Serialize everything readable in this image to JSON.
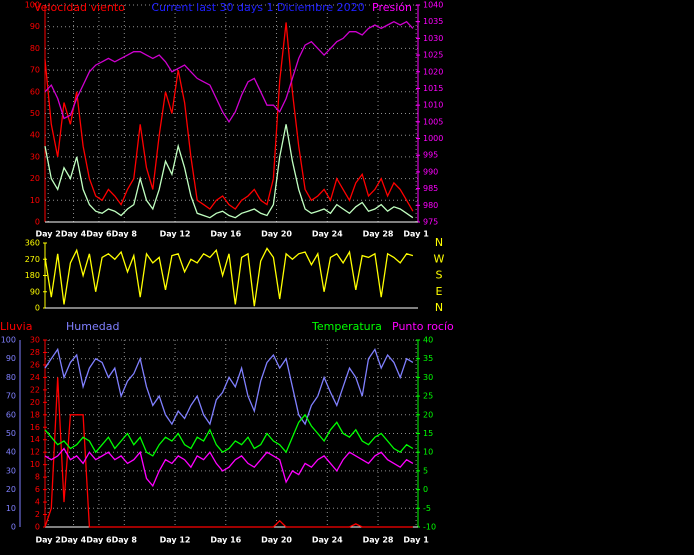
{
  "chart_data": [
    {
      "type": "line",
      "title": "Current last 30 days 1 Diciembre 2020",
      "ylabel": "Velocidad viento",
      "y2label": "Presión",
      "x": [
        0,
        0.5,
        1,
        1.5,
        2,
        2.5,
        3,
        3.5,
        4,
        4.5,
        5,
        5.5,
        6,
        6.5,
        7,
        7.5,
        8,
        8.5,
        9,
        9.5,
        10,
        10.5,
        11,
        11.5,
        12,
        12.5,
        13,
        13.5,
        14,
        14.5,
        15,
        15.5,
        16,
        16.5,
        17,
        17.5,
        18,
        18.5,
        19,
        19.5,
        20,
        20.5,
        21,
        21.5,
        22,
        22.5,
        23,
        23.5,
        24,
        24.5,
        25,
        25.5,
        26,
        26.5,
        27,
        27.5,
        28,
        28.5,
        29
      ],
      "xlim": [
        0,
        29.4
      ],
      "xticks": [
        {
          "value": 0.25,
          "label": "Day 2"
        },
        {
          "value": 2.25,
          "label": "Day 4"
        },
        {
          "value": 4.25,
          "label": "Day 6"
        },
        {
          "value": 6.25,
          "label": "Day 8"
        },
        {
          "value": 10.25,
          "label": "Day 12"
        },
        {
          "value": 14.25,
          "label": "Day 16"
        },
        {
          "value": 18.25,
          "label": "Day 20"
        },
        {
          "value": 22.25,
          "label": "Day 24"
        },
        {
          "value": 26.25,
          "label": "Day 28"
        },
        {
          "value": 29.25,
          "label": "Day 1"
        }
      ],
      "ylim": [
        0,
        100
      ],
      "yticks": [
        0,
        10,
        20,
        30,
        40,
        50,
        60,
        70,
        80,
        90,
        100
      ],
      "ycolor": "#ff0000",
      "y2lim": [
        975,
        1040
      ],
      "y2ticks": [
        975,
        980,
        985,
        990,
        995,
        1000,
        1005,
        1010,
        1015,
        1020,
        1025,
        1030,
        1035,
        1040
      ],
      "y2color": "#ff00ff",
      "grid": true,
      "series": [
        {
          "color": "#ff0000",
          "values": [
            75,
            45,
            30,
            55,
            45,
            60,
            35,
            20,
            12,
            10,
            15,
            12,
            8,
            15,
            20,
            45,
            25,
            15,
            40,
            60,
            50,
            70,
            55,
            30,
            10,
            8,
            6,
            10,
            12,
            8,
            6,
            10,
            12,
            15,
            10,
            8,
            20,
            65,
            92,
            60,
            35,
            15,
            10,
            12,
            15,
            10,
            20,
            15,
            10,
            18,
            22,
            12,
            15,
            20,
            12,
            18,
            15,
            10,
            5
          ]
        },
        {
          "color": "#c0ffc0",
          "values": [
            35,
            20,
            15,
            25,
            20,
            30,
            15,
            8,
            5,
            4,
            6,
            5,
            3,
            6,
            8,
            20,
            10,
            6,
            15,
            28,
            22,
            35,
            25,
            12,
            4,
            3,
            2,
            4,
            5,
            3,
            2,
            4,
            5,
            6,
            4,
            3,
            8,
            30,
            45,
            28,
            15,
            6,
            4,
            5,
            6,
            4,
            8,
            6,
            4,
            7,
            9,
            5,
            6,
            8,
            5,
            7,
            6,
            4,
            2
          ]
        },
        {
          "color": "#d000d0",
          "axis": "y2",
          "values": [
            1014,
            1016,
            1012,
            1006,
            1007,
            1012,
            1016,
            1020,
            1022,
            1023,
            1024,
            1023,
            1024,
            1025,
            1026,
            1026,
            1025,
            1024,
            1025,
            1023,
            1020,
            1021,
            1022,
            1020,
            1018,
            1017,
            1016,
            1012,
            1008,
            1005,
            1008,
            1013,
            1017,
            1018,
            1014,
            1010,
            1010,
            1008,
            1012,
            1018,
            1024,
            1028,
            1029,
            1027,
            1025,
            1027,
            1029,
            1030,
            1032,
            1032,
            1031,
            1033,
            1034,
            1033,
            1034,
            1035,
            1034,
            1035,
            1033
          ]
        }
      ]
    },
    {
      "type": "line",
      "x": [
        0,
        0.5,
        1,
        1.5,
        2,
        2.5,
        3,
        3.5,
        4,
        4.5,
        5,
        5.5,
        6,
        6.5,
        7,
        7.5,
        8,
        8.5,
        9,
        9.5,
        10,
        10.5,
        11,
        11.5,
        12,
        12.5,
        13,
        13.5,
        14,
        14.5,
        15,
        15.5,
        16,
        16.5,
        17,
        17.5,
        18,
        18.5,
        19,
        19.5,
        20,
        20.5,
        21,
        21.5,
        22,
        22.5,
        23,
        23.5,
        24,
        24.5,
        25,
        25.5,
        26,
        26.5,
        27,
        27.5,
        28,
        28.5,
        29
      ],
      "xlim": [
        0,
        29.4
      ],
      "ylim": [
        0,
        360
      ],
      "yticks": [
        0,
        90,
        180,
        270,
        360
      ],
      "ycolor": "#ffff00",
      "y2lim": [
        0,
        360
      ],
      "y2ticks": [
        {
          "value": 360,
          "label": "N"
        },
        {
          "value": 270,
          "label": "W"
        },
        {
          "value": 180,
          "label": "S"
        },
        {
          "value": 90,
          "label": "E"
        },
        {
          "value": 0,
          "label": "N"
        }
      ],
      "y2color": "#ffff00",
      "series": [
        {
          "color": "#ffff00",
          "values": [
            280,
            60,
            300,
            20,
            250,
            320,
            180,
            300,
            90,
            280,
            300,
            270,
            310,
            200,
            290,
            60,
            300,
            250,
            280,
            100,
            290,
            300,
            200,
            270,
            250,
            300,
            280,
            320,
            180,
            300,
            20,
            280,
            300,
            10,
            260,
            330,
            280,
            50,
            300,
            270,
            300,
            310,
            240,
            300,
            90,
            280,
            300,
            250,
            310,
            100,
            290,
            280,
            300,
            60,
            300,
            280,
            250,
            300,
            290
          ]
        }
      ]
    },
    {
      "type": "line",
      "x": [
        0,
        0.5,
        1,
        1.5,
        2,
        2.5,
        3,
        3.5,
        4,
        4.5,
        5,
        5.5,
        6,
        6.5,
        7,
        7.5,
        8,
        8.5,
        9,
        9.5,
        10,
        10.5,
        11,
        11.5,
        12,
        12.5,
        13,
        13.5,
        14,
        14.5,
        15,
        15.5,
        16,
        16.5,
        17,
        17.5,
        18,
        18.5,
        19,
        19.5,
        20,
        20.5,
        21,
        21.5,
        22,
        22.5,
        23,
        23.5,
        24,
        24.5,
        25,
        25.5,
        26,
        26.5,
        27,
        27.5,
        28,
        28.5,
        29
      ],
      "xlim": [
        0,
        29.4
      ],
      "xticks": [
        {
          "value": 0.25,
          "label": "Day 2"
        },
        {
          "value": 2.25,
          "label": "Day 4"
        },
        {
          "value": 4.25,
          "label": "Day 6"
        },
        {
          "value": 6.25,
          "label": "Day 8"
        },
        {
          "value": 10.25,
          "label": "Day 12"
        },
        {
          "value": 14.25,
          "label": "Day 16"
        },
        {
          "value": 18.25,
          "label": "Day 20"
        },
        {
          "value": 22.25,
          "label": "Day 24"
        },
        {
          "value": 26.25,
          "label": "Day 28"
        },
        {
          "value": 29.25,
          "label": "Day 1"
        }
      ],
      "ylim": [
        0,
        100
      ],
      "yticks": [
        0,
        10,
        20,
        30,
        40,
        50,
        60,
        70,
        80,
        90,
        100
      ],
      "ycolor": "#8080ff",
      "y3lim": [
        0,
        30
      ],
      "y3ticks": [
        0,
        2,
        4,
        6,
        8,
        10,
        12,
        14,
        16,
        18,
        20,
        22,
        24,
        26,
        28,
        30
      ],
      "y3color": "#ff0000",
      "y2lim": [
        -10,
        40
      ],
      "y2ticks": [
        -10,
        -5,
        0,
        5,
        10,
        15,
        20,
        25,
        30,
        35,
        40
      ],
      "y2color": "#00ff00",
      "grid": true,
      "series": [
        {
          "name": "Lluvia",
          "color": "#ff0000",
          "axis": "y3",
          "values": [
            0,
            3,
            24,
            4,
            18,
            18,
            18,
            0,
            0,
            0,
            0,
            0,
            0,
            0,
            0,
            0,
            0,
            0,
            0,
            0,
            0,
            0,
            0,
            0,
            0,
            0,
            0,
            0,
            0,
            0,
            0,
            0,
            0,
            0,
            0,
            0,
            0,
            1,
            0,
            0,
            0,
            0,
            0,
            0,
            0,
            0,
            0,
            0,
            0,
            0.5,
            0,
            0,
            0,
            0,
            0,
            0,
            0,
            0,
            0
          ]
        },
        {
          "name": "Humedad",
          "color": "#8080ff",
          "values": [
            85,
            90,
            95,
            80,
            88,
            92,
            75,
            85,
            90,
            88,
            80,
            85,
            70,
            78,
            82,
            90,
            75,
            65,
            70,
            60,
            55,
            62,
            58,
            65,
            70,
            60,
            55,
            68,
            72,
            80,
            75,
            85,
            70,
            62,
            78,
            88,
            92,
            85,
            90,
            75,
            60,
            55,
            65,
            70,
            80,
            72,
            65,
            75,
            85,
            80,
            70,
            90,
            95,
            85,
            92,
            88,
            80,
            90,
            88
          ]
        },
        {
          "name": "Temperatura",
          "color": "#00ff00",
          "axis": "y2",
          "values": [
            16,
            14,
            12,
            13,
            11,
            12,
            14,
            13,
            10,
            12,
            14,
            11,
            13,
            15,
            12,
            14,
            10,
            9,
            12,
            14,
            13,
            15,
            12,
            11,
            14,
            13,
            16,
            12,
            10,
            11,
            13,
            12,
            14,
            11,
            12,
            15,
            13,
            12,
            10,
            14,
            18,
            20,
            17,
            15,
            13,
            16,
            18,
            15,
            14,
            16,
            13,
            12,
            14,
            15,
            13,
            11,
            10,
            12,
            11
          ]
        },
        {
          "name": "Punto rocío",
          "color": "#ff00ff",
          "axis": "y2",
          "values": [
            9,
            8,
            9,
            11,
            8,
            9,
            7,
            10,
            8,
            9,
            10,
            8,
            9,
            7,
            8,
            10,
            3,
            1,
            5,
            8,
            7,
            9,
            8,
            6,
            9,
            8,
            10,
            7,
            5,
            6,
            8,
            9,
            7,
            6,
            8,
            10,
            9,
            8,
            2,
            5,
            4,
            7,
            6,
            8,
            9,
            7,
            5,
            8,
            10,
            9,
            8,
            7,
            9,
            10,
            8,
            7,
            6,
            8,
            7
          ]
        }
      ]
    }
  ]
}
